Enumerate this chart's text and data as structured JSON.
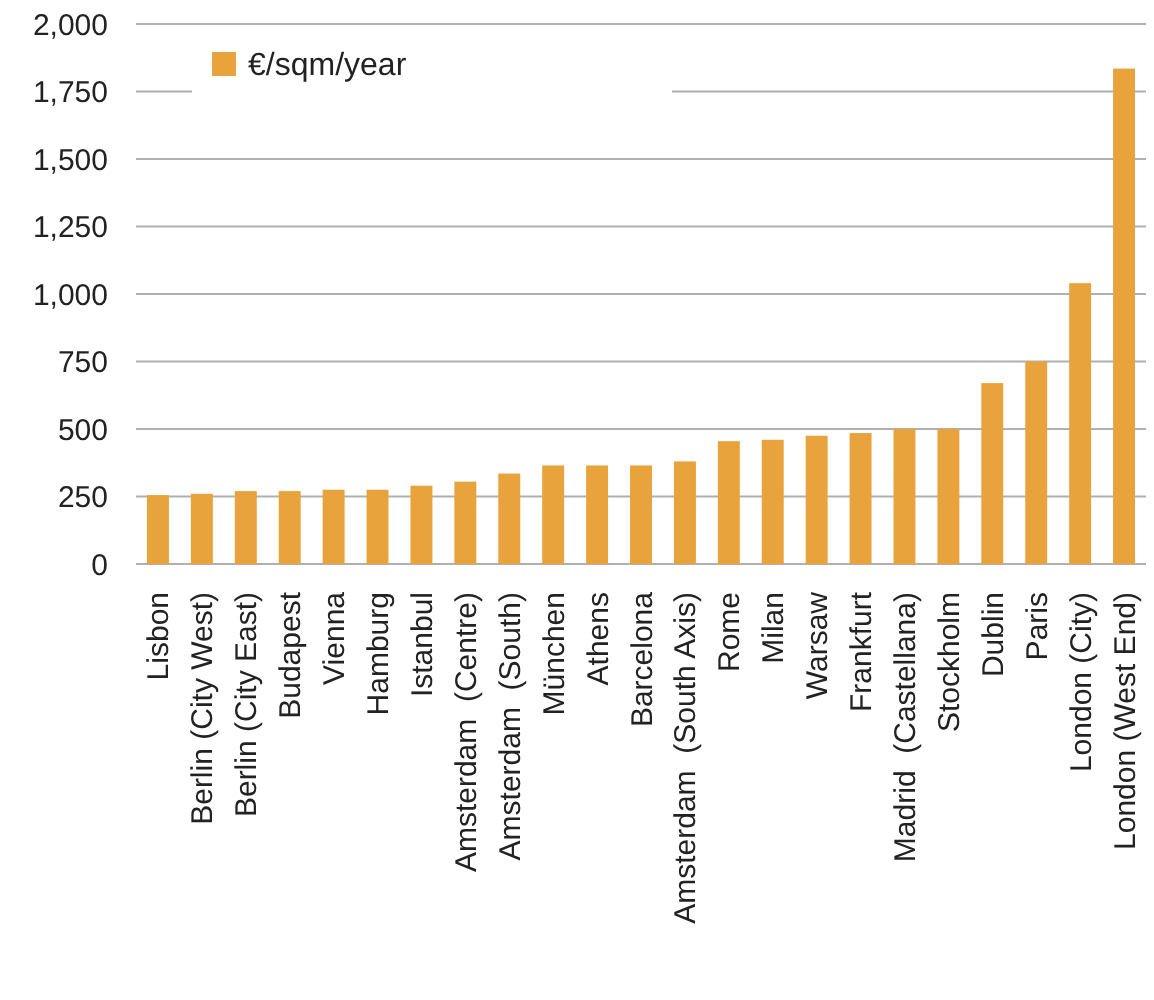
{
  "chart_data": {
    "type": "bar",
    "categories": [
      "Lisbon",
      "Berlin (City West)",
      "Berlin (City East)",
      "Budapest",
      "Vienna",
      "Hamburg",
      "Istanbul",
      "Amsterdam  (Centre)",
      "Amsterdam  (South)",
      "München",
      "Athens",
      "Barcelona",
      "Amsterdam  (South Axis)",
      "Rome",
      "Milan",
      "Warsaw",
      "Frankfurt",
      "Madrid  (Castellana)",
      "Stockholm",
      "Dublin",
      "Paris",
      "London (City)",
      "London (West End)"
    ],
    "series": [
      {
        "name": "€/sqm/year",
        "color": "#e8a33d",
        "values": [
          255,
          260,
          270,
          270,
          275,
          275,
          290,
          305,
          335,
          365,
          365,
          365,
          380,
          455,
          460,
          475,
          485,
          500,
          500,
          670,
          750,
          1040,
          1835
        ]
      }
    ],
    "ylim": [
      0,
      2000
    ],
    "yticks": [
      {
        "value": 0,
        "label": "0"
      },
      {
        "value": 250,
        "label": "250"
      },
      {
        "value": 500,
        "label": "500"
      },
      {
        "value": 750,
        "label": "750"
      },
      {
        "value": 1000,
        "label": "1,000"
      },
      {
        "value": 1250,
        "label": "1,250"
      },
      {
        "value": 1500,
        "label": "1,500"
      },
      {
        "value": 1750,
        "label": "1,750"
      },
      {
        "value": 2000,
        "label": "2,000"
      }
    ],
    "grid": "y",
    "legend": "top left"
  }
}
